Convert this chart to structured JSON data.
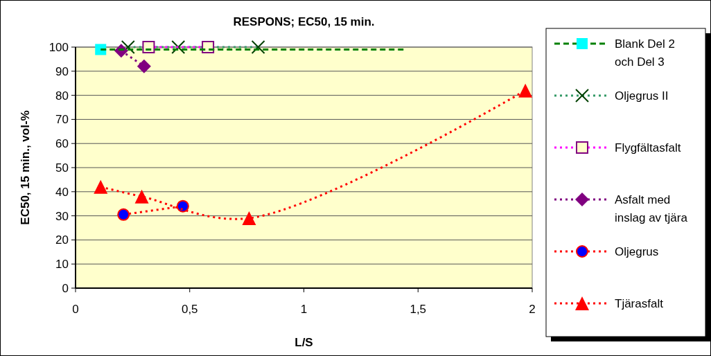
{
  "chart_data": {
    "type": "line",
    "title": "RESPONS; EC50, 15 min.",
    "xlabel": "L/S",
    "ylabel": "EC50, 15 min., vol-%",
    "xlim": [
      0,
      2
    ],
    "xticks": [
      0,
      {
        "value": 0.5,
        "label": "0,5"
      },
      1,
      {
        "value": 1.5,
        "label": "1,5"
      },
      2
    ],
    "ylim": [
      0,
      100
    ],
    "yticks": [
      0,
      10,
      20,
      30,
      40,
      50,
      60,
      70,
      80,
      90,
      100
    ],
    "grid": "y",
    "legend": "right",
    "series": [
      {
        "name": "Blank Del 2 och Del 3",
        "color": "#008000",
        "x": [
          0.11
        ],
        "values": [
          99
        ],
        "marker": "square",
        "colors": [
          "#00ffff"
        ],
        "line_style": "dashed"
      },
      {
        "name": "Oljegrus II",
        "color": "#339966",
        "x": [
          0.23,
          0.45,
          0.8
        ],
        "values": [
          100,
          100,
          100
        ],
        "marker": "cross",
        "colors": [
          "#004000",
          "#004000",
          "#004000"
        ],
        "line_style": "dotted"
      },
      {
        "name": "Flygfältasfalt",
        "color": "#ff00ff",
        "x": [
          0.32,
          0.58
        ],
        "values": [
          100,
          100
        ],
        "marker": "square",
        "colors": [
          "#800080",
          "#800080"
        ],
        "line_style": "dotted"
      },
      {
        "name": "Asfalt med inslag av tjära",
        "color": "#800080",
        "x": [
          0.2,
          0.3
        ],
        "values": [
          98.5,
          92
        ],
        "marker": "diamond",
        "colors": [
          "#800080",
          "#800080"
        ],
        "line_style": "dotted"
      },
      {
        "name": "Oljegrus",
        "color": "#ff0000",
        "x": [
          0.21,
          0.47
        ],
        "values": [
          30.5,
          34
        ],
        "marker": "circle",
        "colors": [
          "#0000ff",
          "#0000ff"
        ],
        "line_style": "dotted"
      },
      {
        "name": "Tjärasfalt",
        "color": "#ff0000",
        "x": [
          0.11,
          0.29,
          0.76,
          1.97
        ],
        "values": [
          42,
          38,
          29,
          82
        ],
        "marker": "triangle",
        "colors": [
          "#ff0000",
          "#ff0000",
          "#ff0000",
          "#ff0000"
        ],
        "line_style": "dotted"
      },
      {
        "type": "line",
        "color": "#008000",
        "x": [
          0.11,
          1.44
        ],
        "values": [
          99,
          99
        ],
        "marker": "none",
        "line_style": "dashed"
      }
    ]
  }
}
